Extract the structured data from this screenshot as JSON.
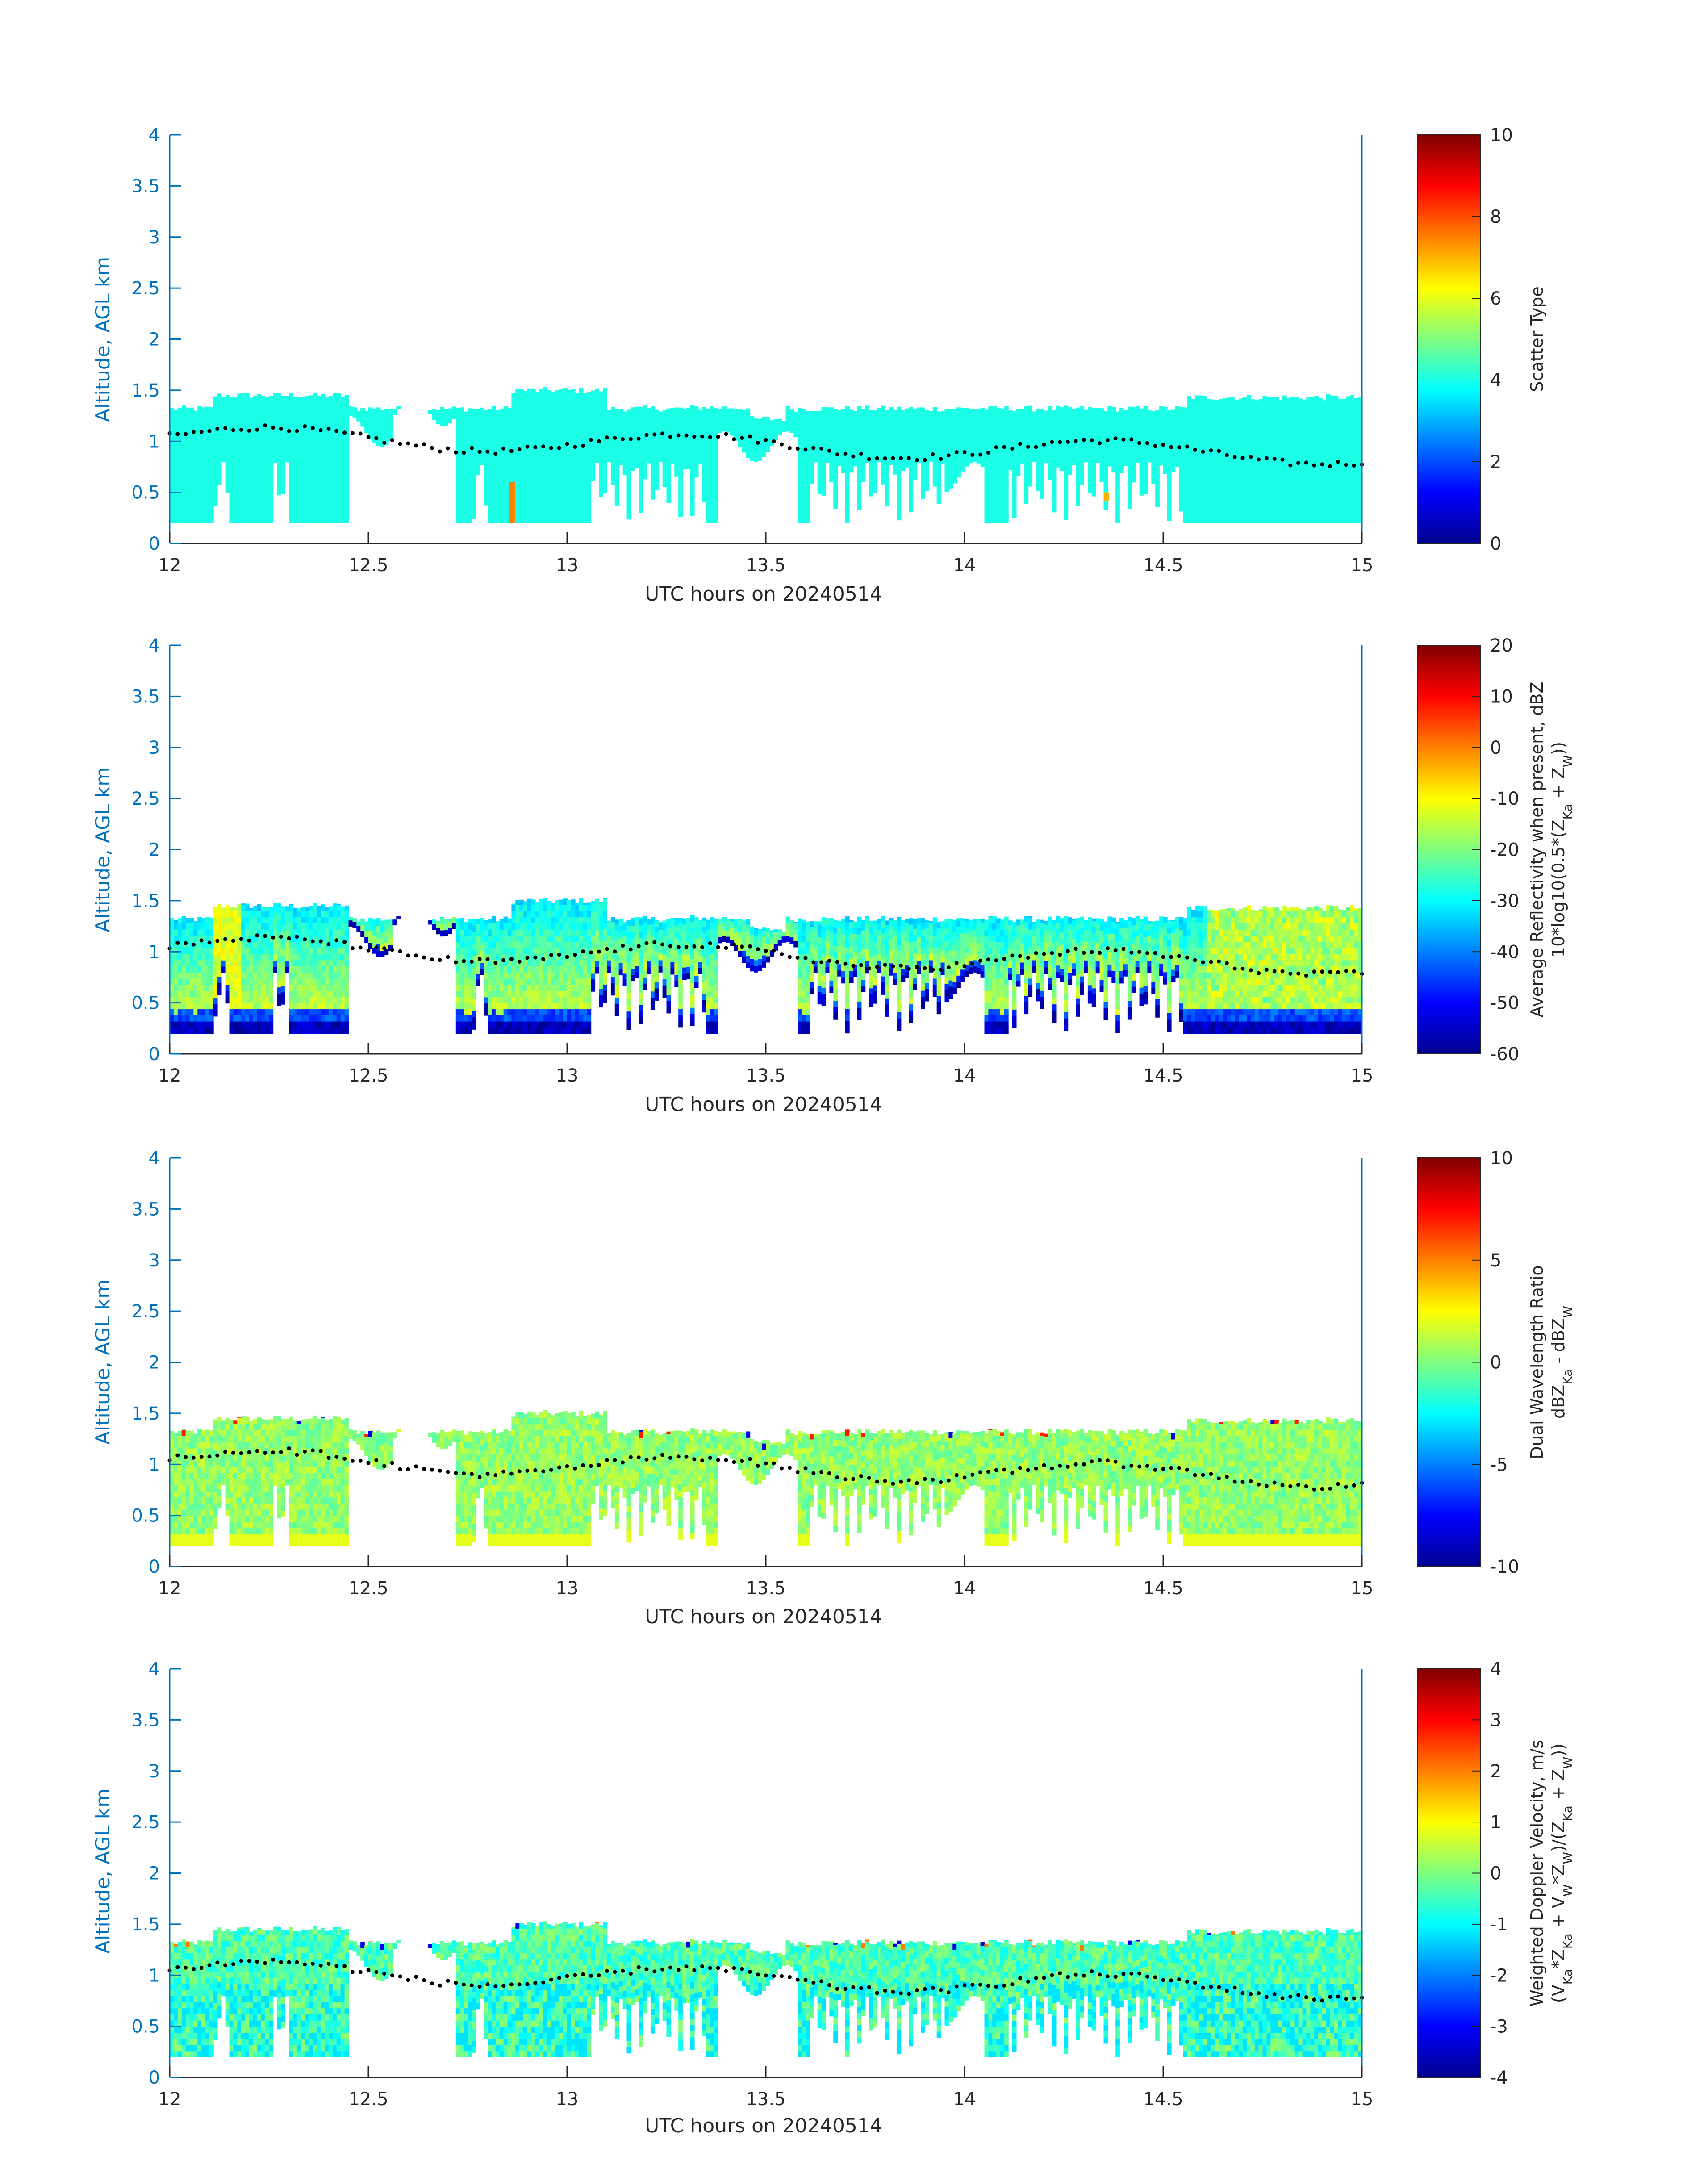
{
  "colors": {
    "axis": "#0072BD",
    "text": "#262626",
    "jet": [
      "#00008f",
      "#0000ff",
      "#0080ff",
      "#00ffff",
      "#80ff80",
      "#ffff00",
      "#ff8000",
      "#ff0000",
      "#800000"
    ]
  },
  "common": {
    "xlabel": "UTC hours on 20240514",
    "ylabel": "Altitude, AGL km",
    "xticks": [
      "12",
      "12.5",
      "13",
      "13.5",
      "14",
      "14.5",
      "15"
    ],
    "yticks": [
      "0",
      "0.5",
      "1",
      "1.5",
      "2",
      "2.5",
      "3",
      "3.5",
      "4"
    ],
    "xlim": [
      12,
      15
    ],
    "ylim": [
      0,
      4
    ]
  },
  "chart_data": [
    {
      "type": "heatmap",
      "colorbar_label": [
        "Scatter Type"
      ],
      "colorbar_ticks": [
        "0",
        "2",
        "4",
        "6",
        "8",
        "10"
      ],
      "clim": [
        0,
        10
      ]
    },
    {
      "type": "heatmap",
      "colorbar_label": [
        "Average Reflectivity when present, dBZ",
        "10*log10(0.5*(Z",
        "Ka",
        " + Z",
        "W",
        "))"
      ],
      "colorbar_ticks": [
        "-60",
        "-50",
        "-40",
        "-30",
        "-20",
        "-10",
        "0",
        "10",
        "20"
      ],
      "clim": [
        -60,
        20
      ]
    },
    {
      "type": "heatmap",
      "colorbar_label": [
        "Dual Wavelength Ratio",
        "dBZ",
        "Ka",
        " - dBZ",
        "W"
      ],
      "colorbar_ticks": [
        "-10",
        "-5",
        "0",
        "5",
        "10"
      ],
      "clim": [
        -10,
        10
      ]
    },
    {
      "type": "heatmap",
      "colorbar_label": [
        "Weighted Doppler Velocity, m/s",
        "(V",
        "Ka",
        "*Z",
        "Ka",
        " + V",
        "W",
        "*Z",
        "W",
        ")/(Z",
        "Ka",
        " + Z",
        "W",
        "))"
      ],
      "colorbar_ticks": [
        "-4",
        "-3",
        "-2",
        "-1",
        "0",
        "1",
        "2",
        "3",
        "4"
      ],
      "clim": [
        -4,
        4
      ]
    }
  ]
}
